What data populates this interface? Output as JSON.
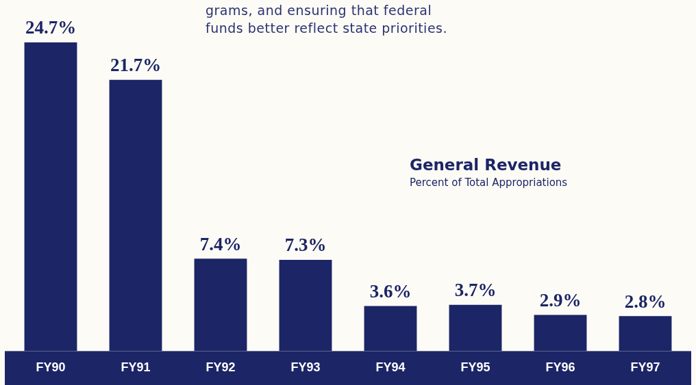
{
  "chart_data": {
    "type": "bar",
    "title": "General Revenue",
    "subtitle": "Percent of Total Appropriations",
    "annotations": [
      "grams, and ensuring that federal",
      "funds better reflect state priorities."
    ],
    "categories": [
      "FY90",
      "FY91",
      "FY92",
      "FY93",
      "FY94",
      "FY95",
      "FY96",
      "FY97"
    ],
    "values": [
      24.7,
      21.7,
      7.4,
      7.3,
      3.6,
      3.7,
      2.9,
      2.8
    ],
    "value_labels": [
      "24.7%",
      "21.7%",
      "7.4%",
      "7.3%",
      "3.6%",
      "3.7%",
      "2.9%",
      "2.8%"
    ],
    "data_labels": true,
    "color": "#1c2566",
    "ylim": [
      0,
      27
    ],
    "grid": false,
    "tick_labels": "x"
  }
}
